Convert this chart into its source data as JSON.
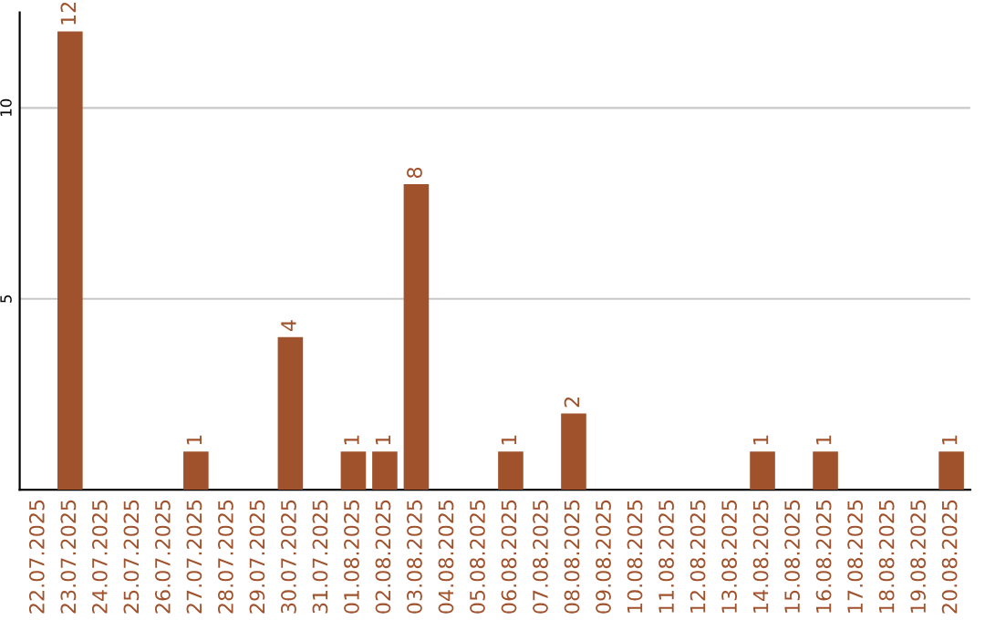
{
  "chart_data": {
    "type": "bar",
    "categories": [
      "22.07.2025",
      "23.07.2025",
      "24.07.2025",
      "25.07.2025",
      "26.07.2025",
      "27.07.2025",
      "28.07.2025",
      "29.07.2025",
      "30.07.2025",
      "31.07.2025",
      "01.08.2025",
      "02.08.2025",
      "03.08.2025",
      "04.08.2025",
      "05.08.2025",
      "06.08.2025",
      "07.08.2025",
      "08.08.2025",
      "09.08.2025",
      "10.08.2025",
      "11.08.2025",
      "12.08.2025",
      "13.08.2025",
      "14.08.2025",
      "15.08.2025",
      "16.08.2025",
      "17.08.2025",
      "18.08.2025",
      "19.08.2025",
      "20.08.2025"
    ],
    "values": [
      0,
      12,
      0,
      0,
      0,
      1,
      0,
      0,
      4,
      0,
      1,
      1,
      8,
      0,
      0,
      1,
      0,
      2,
      0,
      0,
      0,
      0,
      0,
      1,
      0,
      1,
      0,
      0,
      0,
      1
    ],
    "color": "#a0522d",
    "ylim": [
      0,
      12.5
    ],
    "yticks": [
      5,
      10
    ],
    "grid": "y",
    "value_labels": [
      null,
      "12",
      null,
      null,
      null,
      "1",
      null,
      null,
      "4",
      null,
      "1",
      "1",
      "8",
      null,
      null,
      "1",
      null,
      "2",
      null,
      null,
      null,
      null,
      null,
      "1",
      null,
      "1",
      null,
      null,
      null,
      "1"
    ]
  }
}
